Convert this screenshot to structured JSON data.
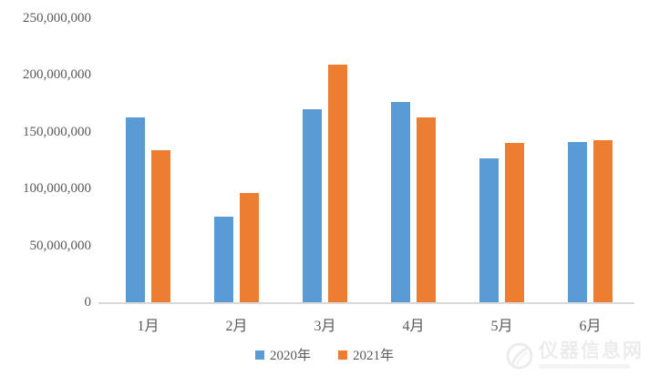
{
  "chart_data": {
    "type": "bar",
    "title": "",
    "xlabel": "",
    "ylabel": "",
    "categories": [
      "1月",
      "2月",
      "3月",
      "4月",
      "5月",
      "6月"
    ],
    "series": [
      {
        "name": "2020年",
        "color": "#5B9BD5",
        "values": [
          163000000,
          75000000,
          170000000,
          176000000,
          127000000,
          141000000
        ]
      },
      {
        "name": "2021年",
        "color": "#ED7D31",
        "values": [
          134000000,
          96000000,
          209000000,
          163000000,
          140000000,
          143000000
        ]
      }
    ],
    "ylim": [
      0,
      250000000
    ],
    "y_ticks": [
      {
        "value": 0,
        "label": "0"
      },
      {
        "value": 50000000,
        "label": "50,000,000"
      },
      {
        "value": 100000000,
        "label": "100,000,000"
      },
      {
        "value": 150000000,
        "label": "150,000,000"
      },
      {
        "value": 200000000,
        "label": "200,000,000"
      },
      {
        "value": 250000000,
        "label": "250,000,000"
      }
    ],
    "grid": false,
    "legend_position": "bottom"
  },
  "watermark": {
    "text": "仪器信息网"
  },
  "colors": {
    "background": "#ffffff",
    "axis_line": "#d9d9d9",
    "tick_text": "#595959",
    "series_2020": "#5B9BD5",
    "series_2021": "#ED7D31",
    "watermark": "#ececec"
  }
}
